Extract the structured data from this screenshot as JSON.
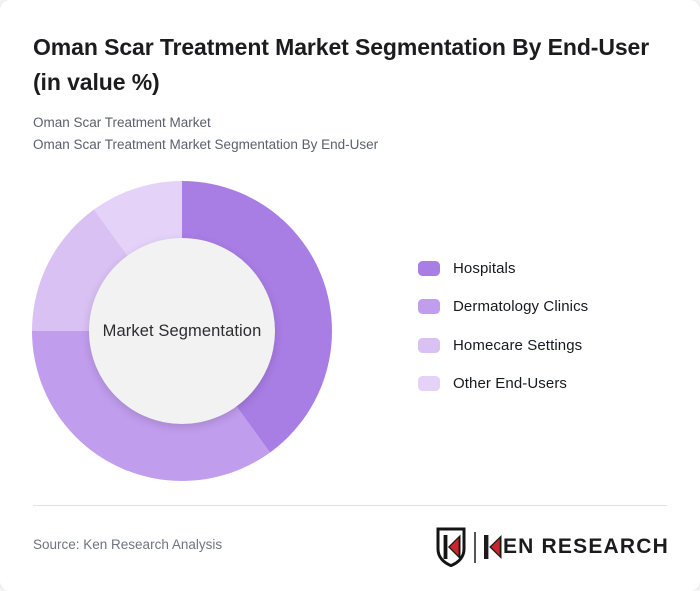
{
  "header": {
    "title": "Oman Scar Treatment Market Segmentation By End-User (in value %)",
    "subtitles": [
      "Oman Scar Treatment Market",
      "Oman Scar Treatment Market Segmentation By End-User"
    ]
  },
  "chart_data": {
    "type": "pie",
    "variant": "donut",
    "title": "Oman Scar Treatment Market Segmentation By End-User (in value %)",
    "unit": "value %",
    "center_label": "Market Segmentation",
    "start_angle_deg": 0,
    "direction": "clockwise",
    "legend_position": "right",
    "categories": [
      "Hospitals",
      "Dermatology Clinics",
      "Homecare Settings",
      "Other End-Users"
    ],
    "values": [
      40,
      35,
      15,
      10
    ],
    "colors": [
      "#a87de4",
      "#c19dee",
      "#d9c1f3",
      "#e4d2f8"
    ],
    "hole_color": "#f2f2f2"
  },
  "footer": {
    "source": "Source: Ken Research Analysis",
    "brand": "KEN RESEARCH",
    "brand_text_after_k": "EN RESEARCH",
    "brand_red": "#c9252d",
    "brand_dark": "#1b1b1d"
  }
}
